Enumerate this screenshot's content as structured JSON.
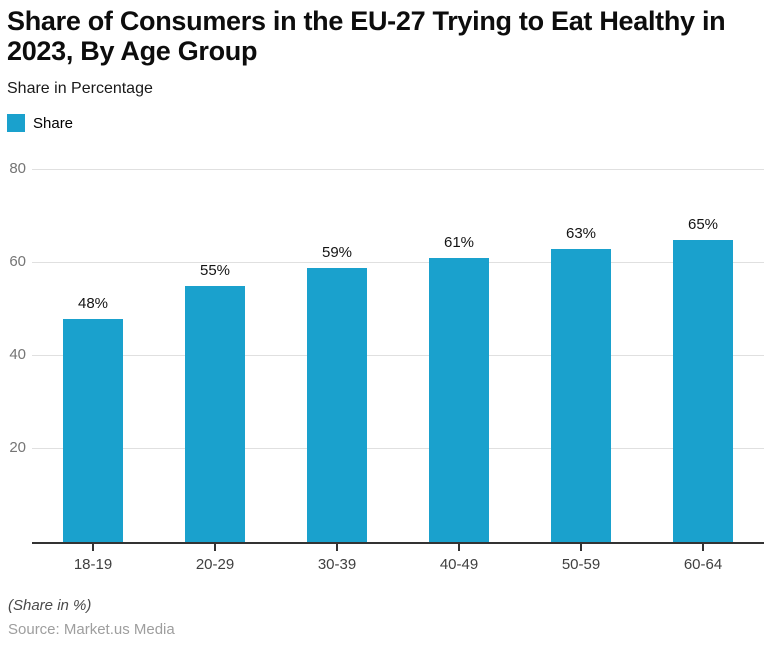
{
  "header": {
    "title_lines": [
      "Share of Consumers in the EU-27 Trying to Eat Healthy in",
      "2023, By Age Group"
    ],
    "subtitle": "Share in Percentage"
  },
  "legend": {
    "items": [
      {
        "label": "Share",
        "color": "#1AA1CD"
      }
    ]
  },
  "footer": {
    "note": "(Share in %)",
    "source": "Source: Market.us Media"
  },
  "colors": {
    "bar": "#1AA1CD",
    "grid": "#e0e0e0",
    "axis": "#333333",
    "ytick_text": "#757575",
    "xtick_text": "#404040"
  },
  "chart_data": {
    "type": "bar",
    "title": "Share of Consumers in the EU-27 Trying to Eat Healthy in 2023, By Age Group",
    "subtitle": "Share in Percentage",
    "categories": [
      "18-19",
      "20-29",
      "30-39",
      "40-49",
      "50-59",
      "60-64"
    ],
    "series": [
      {
        "name": "Share",
        "values": [
          48,
          55,
          59,
          61,
          63,
          65
        ]
      }
    ],
    "value_labels": [
      "48%",
      "55%",
      "59%",
      "61%",
      "63%",
      "65%"
    ],
    "xlabel": "",
    "ylabel": "Share in %",
    "ylim": [
      0,
      85
    ],
    "y_ticks": [
      20,
      40,
      60,
      80
    ],
    "grid": true,
    "legend_position": "top-left"
  }
}
